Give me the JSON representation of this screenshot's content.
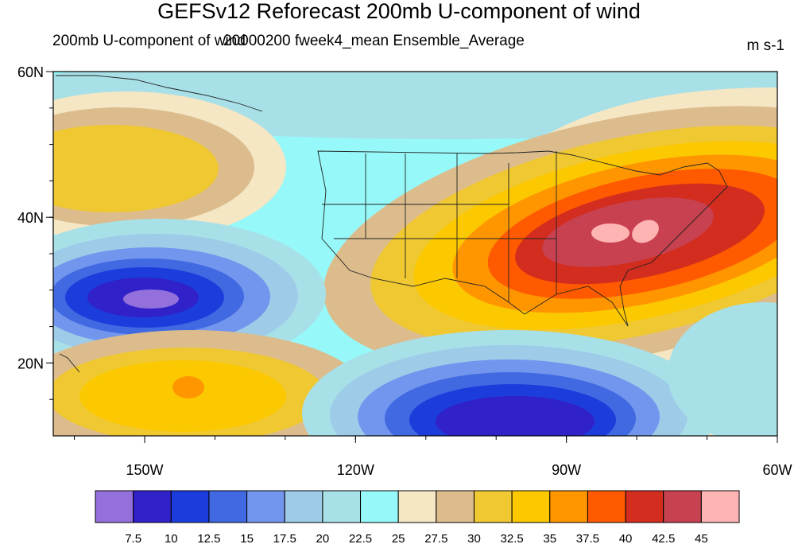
{
  "header": {
    "title": "GEFSv12 Reforecast 200mb U-component of wind",
    "left_subtitle": "200mb U-component of wind",
    "center_subtitle": "20000200 fweek4_mean Ensemble_Average",
    "units": "m s-1"
  },
  "map": {
    "projection": "cylindrical equidistant",
    "extent": {
      "lon_min": -163,
      "lon_max": -60,
      "lat_min": 10,
      "lat_max": 60
    },
    "lon_ticks": [
      {
        "value": -150,
        "label": "150W"
      },
      {
        "value": -120,
        "label": "120W"
      },
      {
        "value": -90,
        "label": "90W"
      },
      {
        "value": -60,
        "label": "60W"
      }
    ],
    "lat_ticks": [
      {
        "value": 20,
        "label": "20N"
      },
      {
        "value": 40,
        "label": "40N"
      },
      {
        "value": 60,
        "label": "60N"
      }
    ],
    "features": [
      {
        "name": "jet-core",
        "lon": -78,
        "lat": 38,
        "max_value": 45
      },
      {
        "name": "pacific-low-core",
        "lon": -146,
        "lat": 29,
        "min_value": 7.5
      },
      {
        "name": "gulf-low-core",
        "lon": -100,
        "lat": 14,
        "min_value": 10
      }
    ]
  },
  "colorbar": {
    "colors": [
      "#9370db",
      "#3021c8",
      "#1c3ddc",
      "#4169e1",
      "#7295ee",
      "#9ecbe8",
      "#a8e0e8",
      "#96f8f8",
      "#f5e6c4",
      "#dcbc8c",
      "#f0c832",
      "#fcc800",
      "#ff9600",
      "#ff5a00",
      "#d22d1e",
      "#c84150",
      "#ffb4b4"
    ],
    "levels": [
      "7.5",
      "10",
      "12.5",
      "15",
      "17.5",
      "20",
      "22.5",
      "25",
      "27.5",
      "30",
      "32.5",
      "35",
      "37.5",
      "40",
      "42.5",
      "45"
    ]
  }
}
